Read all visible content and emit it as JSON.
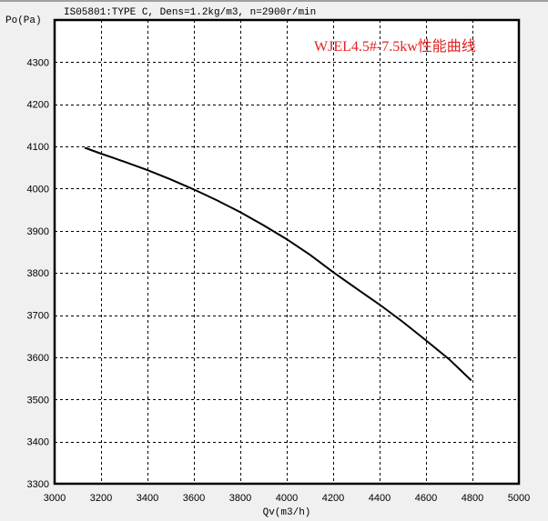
{
  "header": {
    "subtitle": "IS05801:TYPE C,  Dens=1.2kg/m3,  n=2900r/min"
  },
  "colors": {
    "background": "#f0f0f0",
    "plot_bg": "#ffffff",
    "axis": "#000000",
    "grid": "#000000",
    "curve": "#000000",
    "title": "#e02020"
  },
  "chart_data": {
    "type": "line",
    "title": "WJEL4.5#-7.5kw性能曲线",
    "subtitle": "IS05801:TYPE C,  Dens=1.2kg/m3,  n=2900r/min",
    "xlabel": "Qv(m3/h)",
    "ylabel": "Po(Pa)",
    "xlim": [
      3000,
      5000
    ],
    "ylim": [
      3300,
      4400
    ],
    "x_ticks": [
      3000,
      3200,
      3400,
      3600,
      3800,
      4000,
      4200,
      4400,
      4600,
      4800,
      5000
    ],
    "y_ticks": [
      3300,
      3400,
      3500,
      3600,
      3700,
      3800,
      3900,
      4000,
      4100,
      4200,
      4300
    ],
    "grid": true,
    "grid_style": "dashed",
    "legend": null,
    "series": [
      {
        "name": "Po",
        "x": [
          3130,
          3200,
          3300,
          3400,
          3500,
          3600,
          3700,
          3800,
          3900,
          4000,
          4100,
          4200,
          4300,
          4400,
          4500,
          4600,
          4700,
          4795
        ],
        "y": [
          4097,
          4083,
          4064,
          4044,
          4022,
          3998,
          3972,
          3944,
          3913,
          3880,
          3843,
          3802,
          3763,
          3725,
          3684,
          3640,
          3595,
          3545
        ]
      }
    ]
  }
}
